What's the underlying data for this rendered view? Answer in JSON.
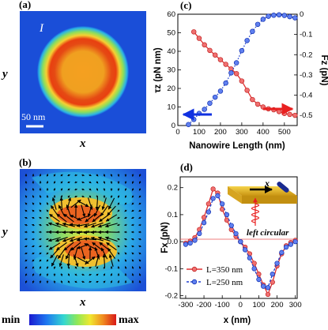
{
  "panels": {
    "a": {
      "label": "(a)",
      "field_label": "I",
      "scale_bar": "50 nm",
      "xlabel": "x",
      "ylabel": "y"
    },
    "b": {
      "label": "(b)",
      "xlabel": "x",
      "ylabel": "y"
    },
    "c": {
      "label": "(c)"
    },
    "d": {
      "label": "(d)"
    }
  },
  "colorbar": {
    "min_label": "min",
    "max_label": "max"
  },
  "chart_data": [
    {
      "panel": "c",
      "type": "line",
      "xlabel": "Nanowire Length (nm)",
      "ylabel_left": "τz (pN nm)",
      "ylabel_right": "Fz (pN)",
      "xlim": [
        0,
        560
      ],
      "ylim_left": [
        0,
        60
      ],
      "ylim_right": [
        -0.55,
        0
      ],
      "xticks": [
        "0",
        "100",
        "200",
        "300",
        "400",
        "500"
      ],
      "yticks_left": [
        "0",
        "10",
        "20",
        "30",
        "40",
        "50",
        "60"
      ],
      "yticks_right": [
        "0",
        "-0.1",
        "-0.2",
        "-0.3",
        "-0.4",
        "-0.5"
      ],
      "series": [
        {
          "axis": "left",
          "color": "#e03030",
          "style": "solid",
          "marker": "circle",
          "x": [
            75,
            100,
            125,
            150,
            175,
            200,
            225,
            250,
            275,
            300,
            325,
            350,
            375,
            400,
            425,
            450,
            475,
            500,
            525,
            550
          ],
          "values": [
            50.5,
            47.0,
            43.5,
            40.5,
            38.0,
            35.5,
            33.0,
            30.5,
            28.0,
            24.0,
            19.0,
            14.0,
            11.5,
            10.0,
            9.0,
            8.5,
            7.5,
            6.5,
            6.0,
            5.5
          ]
        },
        {
          "axis": "right",
          "color": "#2040d0",
          "style": "dotted",
          "marker": "circle",
          "x": [
            50,
            75,
            100,
            125,
            150,
            175,
            200,
            225,
            250,
            275,
            300,
            325,
            350,
            375,
            400,
            425,
            450,
            475,
            500,
            525,
            550
          ],
          "values": [
            -0.545,
            -0.52,
            -0.49,
            -0.47,
            -0.44,
            -0.41,
            -0.38,
            -0.34,
            -0.29,
            -0.24,
            -0.18,
            -0.13,
            -0.085,
            -0.05,
            -0.025,
            -0.01,
            -0.005,
            -0.003,
            -0.006,
            -0.012,
            -0.018
          ]
        }
      ]
    },
    {
      "panel": "d",
      "type": "line",
      "xlabel": "x (nm)",
      "ylabel": "Fx (pN)",
      "xlim": [
        -330,
        310
      ],
      "ylim": [
        -0.21,
        0.24
      ],
      "xticks": [
        "-300",
        "-200",
        "-100",
        "0",
        "100",
        "200",
        "300"
      ],
      "yticks": [
        "0.2",
        "0.1",
        "0.0",
        "-0.1",
        "-0.2"
      ],
      "annotation": "left circular",
      "inset_axis_label": "x",
      "series": [
        {
          "name": "L=350 nm",
          "color": "#e03030",
          "style": "solid",
          "marker": "circle",
          "x": [
            -300,
            -275,
            -250,
            -225,
            -200,
            -175,
            -150,
            -125,
            -100,
            -75,
            -50,
            -25,
            0,
            25,
            50,
            75,
            100,
            125,
            150,
            175,
            200,
            225,
            250,
            275,
            300
          ],
          "values": [
            -0.005,
            0.002,
            0.015,
            0.045,
            0.09,
            0.14,
            0.195,
            0.18,
            0.12,
            0.08,
            0.045,
            0.02,
            0.0,
            -0.02,
            -0.045,
            -0.08,
            -0.12,
            -0.16,
            -0.195,
            -0.15,
            -0.09,
            -0.045,
            -0.015,
            -0.003,
            0.005
          ]
        },
        {
          "name": "L=250 nm",
          "color": "#2040d0",
          "style": "dashed",
          "marker": "circle",
          "x": [
            -300,
            -275,
            -250,
            -225,
            -200,
            -175,
            -150,
            -125,
            -100,
            -75,
            -50,
            -25,
            0,
            25,
            50,
            75,
            100,
            125,
            150,
            175,
            200,
            225,
            250,
            275,
            300
          ],
          "values": [
            -0.01,
            -0.005,
            0.005,
            0.03,
            0.07,
            0.11,
            0.16,
            0.17,
            0.14,
            0.1,
            0.06,
            0.03,
            0.0,
            -0.03,
            -0.06,
            -0.1,
            -0.14,
            -0.165,
            -0.17,
            -0.12,
            -0.08,
            -0.04,
            -0.02,
            -0.01,
            0.0
          ]
        }
      ]
    }
  ]
}
